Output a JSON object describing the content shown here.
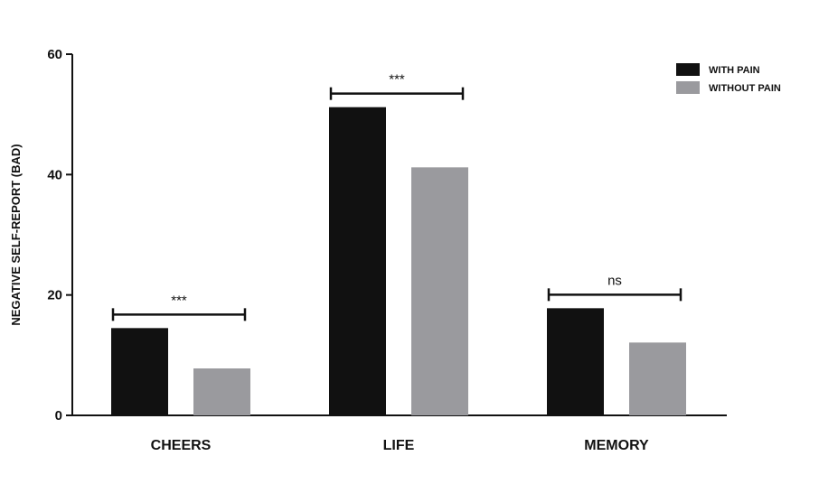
{
  "chart_data": {
    "type": "bar",
    "ylabel": "NEGATIVE SELF-REPORT (BAD)",
    "ylim": [
      0,
      60
    ],
    "yticks": [
      0,
      20,
      40,
      60
    ],
    "grid": false,
    "legend_position": "top-right",
    "categories": [
      "CHEERS",
      "LIFE",
      "MEMORY"
    ],
    "series": [
      {
        "name": "WITH PAIN",
        "color": "#111111",
        "values": [
          14.5,
          51.2,
          17.8
        ]
      },
      {
        "name": "WITHOUT PAIN",
        "color": "#9a9a9e",
        "values": [
          7.8,
          41.2,
          12.1
        ]
      }
    ],
    "annotations": [
      {
        "category": "CHEERS",
        "text": "***"
      },
      {
        "category": "LIFE",
        "text": "***"
      },
      {
        "category": "MEMORY",
        "text": "ns"
      }
    ]
  }
}
